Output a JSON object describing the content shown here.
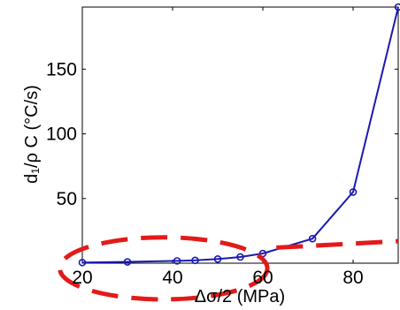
{
  "chart_data": {
    "type": "line",
    "xlabel": "Δσ/2 (MPa)",
    "ylabel": "d₁/ρ C (°C/s)",
    "xlim": [
      20,
      90
    ],
    "ylim": [
      0,
      198
    ],
    "xticks": [
      20,
      40,
      60,
      80
    ],
    "yticks": [
      50,
      100,
      150
    ],
    "grid": false,
    "series": [
      {
        "color": "#1a1ab4",
        "marker": "circle",
        "x": [
          20,
          30,
          41,
          45,
          50,
          55,
          60,
          71,
          80,
          90
        ],
        "y": [
          0.5,
          1,
          1.8,
          2.2,
          3.2,
          4.8,
          7.5,
          19,
          55,
          198
        ]
      }
    ],
    "annotations": {
      "ellipse": {
        "color": "#e41a1a",
        "style": "dashed",
        "x_range": [
          15,
          61
        ],
        "y_range": [
          -28,
          20
        ]
      },
      "dashed_line": {
        "color": "#e41a1a",
        "style": "dashed",
        "x": [
          63,
          90
        ],
        "y": [
          12,
          17
        ]
      }
    }
  }
}
